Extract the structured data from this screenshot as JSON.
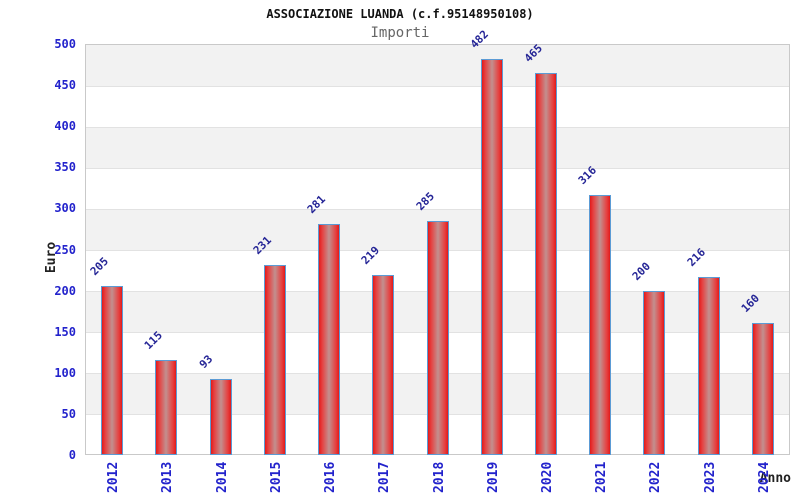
{
  "chart_data": {
    "type": "bar",
    "title": "ASSOCIAZIONE LUANDA (c.f.95148950108)",
    "subtitle": "Importi",
    "xlabel": "Anno",
    "ylabel": "Euro",
    "categories": [
      "2012",
      "2013",
      "2014",
      "2015",
      "2016",
      "2017",
      "2018",
      "2019",
      "2020",
      "2021",
      "2022",
      "2023",
      "2024"
    ],
    "values": [
      205,
      115,
      93,
      231,
      281,
      219,
      285,
      482,
      465,
      316,
      200,
      216,
      160
    ],
    "ylim": [
      0,
      500
    ],
    "ytick_step": 50,
    "ytick_labels": [
      "0",
      "50",
      "100",
      "150",
      "200",
      "250",
      "300",
      "350",
      "400",
      "450",
      "500"
    ],
    "grid": true,
    "legend": "none",
    "band_colors": [
      "#f2f2f2",
      "#ffffff"
    ],
    "colors": {
      "bar_fill": "#e21a1a",
      "bar_fill_center": "#c2908f",
      "bar_border": "#5b9bd5",
      "value_label": "#252596",
      "tick_label": "#2323cc",
      "title": "#111111",
      "subtitle": "#666666",
      "axis_label": "#222222",
      "plot_border": "#c9c9c9"
    }
  }
}
